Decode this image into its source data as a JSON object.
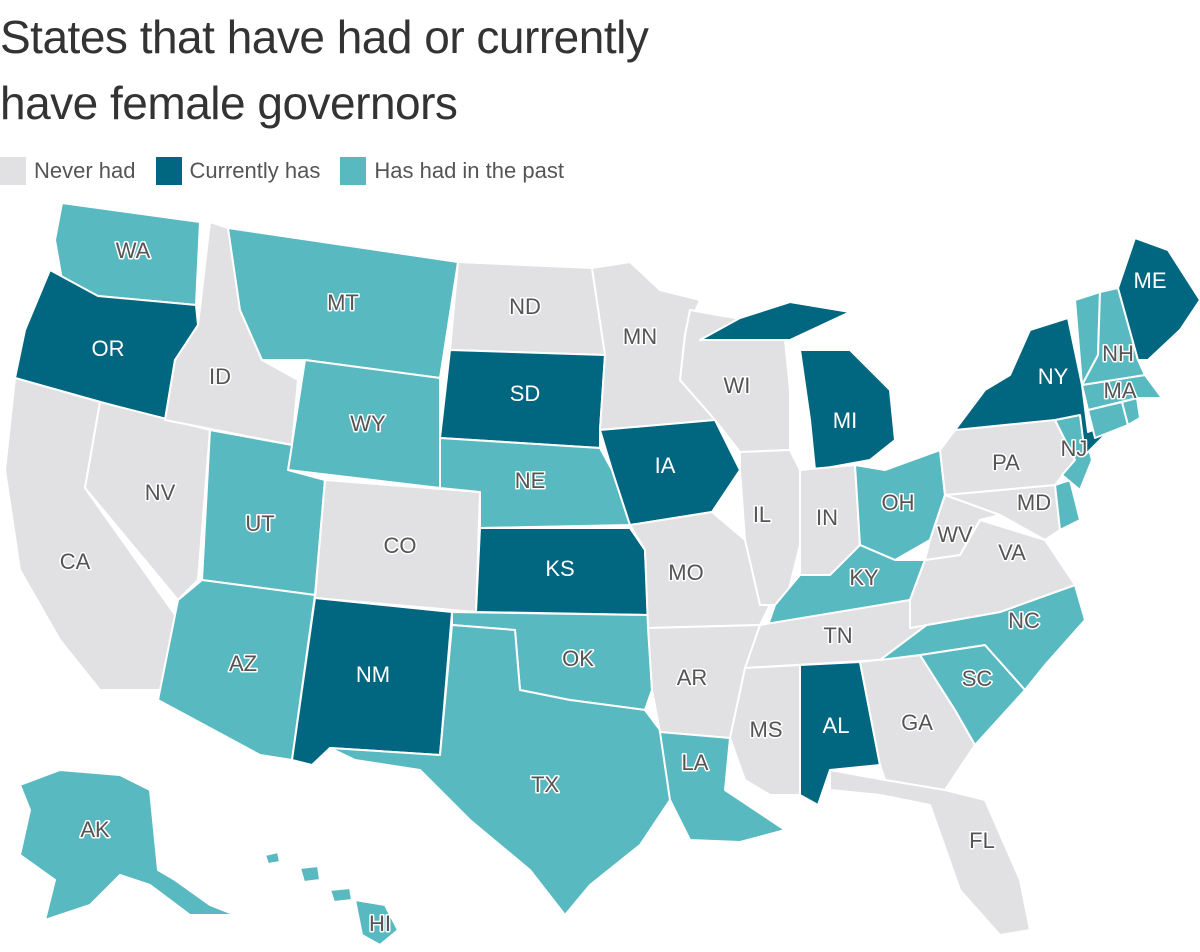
{
  "title": {
    "line1": "States that have had or currently",
    "line2": "have female governors"
  },
  "legend": [
    {
      "key": "never",
      "label": "Never had",
      "color": "#e1e1e3"
    },
    {
      "key": "current",
      "label": "Currently has",
      "color": "#01667f"
    },
    {
      "key": "past",
      "label": "Has had in the past",
      "color": "#58b9c1"
    }
  ],
  "colors": {
    "never": "#e1e1e3",
    "current": "#01667f",
    "past": "#58b9c1",
    "border": "#ffffff"
  },
  "states": [
    {
      "abbr": "WA",
      "status": "past"
    },
    {
      "abbr": "OR",
      "status": "current"
    },
    {
      "abbr": "CA",
      "status": "never"
    },
    {
      "abbr": "NV",
      "status": "never"
    },
    {
      "abbr": "ID",
      "status": "never"
    },
    {
      "abbr": "MT",
      "status": "past"
    },
    {
      "abbr": "WY",
      "status": "past"
    },
    {
      "abbr": "UT",
      "status": "past"
    },
    {
      "abbr": "AZ",
      "status": "past"
    },
    {
      "abbr": "CO",
      "status": "never"
    },
    {
      "abbr": "NM",
      "status": "current"
    },
    {
      "abbr": "ND",
      "status": "never"
    },
    {
      "abbr": "SD",
      "status": "current"
    },
    {
      "abbr": "NE",
      "status": "past"
    },
    {
      "abbr": "KS",
      "status": "current"
    },
    {
      "abbr": "OK",
      "status": "past"
    },
    {
      "abbr": "TX",
      "status": "past"
    },
    {
      "abbr": "MN",
      "status": "never"
    },
    {
      "abbr": "IA",
      "status": "current"
    },
    {
      "abbr": "MO",
      "status": "never"
    },
    {
      "abbr": "AR",
      "status": "never"
    },
    {
      "abbr": "LA",
      "status": "past"
    },
    {
      "abbr": "WI",
      "status": "never"
    },
    {
      "abbr": "IL",
      "status": "never"
    },
    {
      "abbr": "MI",
      "status": "current"
    },
    {
      "abbr": "IN",
      "status": "never"
    },
    {
      "abbr": "OH",
      "status": "past"
    },
    {
      "abbr": "KY",
      "status": "past"
    },
    {
      "abbr": "TN",
      "status": "never"
    },
    {
      "abbr": "MS",
      "status": "never"
    },
    {
      "abbr": "AL",
      "status": "current"
    },
    {
      "abbr": "GA",
      "status": "never"
    },
    {
      "abbr": "FL",
      "status": "never"
    },
    {
      "abbr": "SC",
      "status": "past"
    },
    {
      "abbr": "NC",
      "status": "past"
    },
    {
      "abbr": "VA",
      "status": "never"
    },
    {
      "abbr": "WV",
      "status": "never"
    },
    {
      "abbr": "MD",
      "status": "never"
    },
    {
      "abbr": "DE",
      "status": "past"
    },
    {
      "abbr": "PA",
      "status": "never"
    },
    {
      "abbr": "NJ",
      "status": "past"
    },
    {
      "abbr": "NY",
      "status": "current"
    },
    {
      "abbr": "CT",
      "status": "past"
    },
    {
      "abbr": "RI",
      "status": "past"
    },
    {
      "abbr": "MA",
      "status": "past"
    },
    {
      "abbr": "VT",
      "status": "past"
    },
    {
      "abbr": "NH",
      "status": "past"
    },
    {
      "abbr": "ME",
      "status": "current"
    },
    {
      "abbr": "AK",
      "status": "past"
    },
    {
      "abbr": "HI",
      "status": "past"
    }
  ]
}
